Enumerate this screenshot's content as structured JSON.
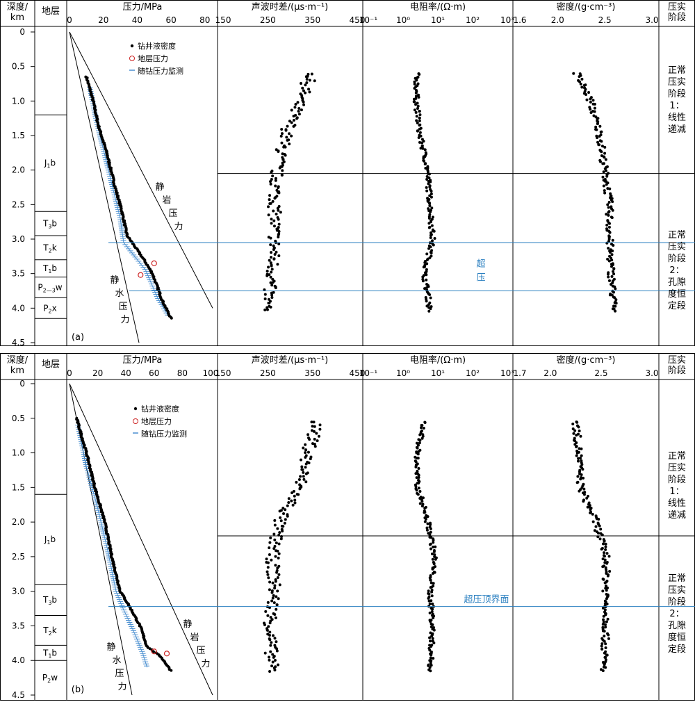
{
  "headers": {
    "depth": [
      "深度/",
      "km"
    ],
    "strata": "地层",
    "pressure": "压力/MPa",
    "sonic": "声波时差/(μs·m⁻¹)",
    "resist": "电阻率/(Ω·m)",
    "density": "密度/(g·cm⁻³)",
    "stage": [
      "压实",
      "阶段"
    ]
  },
  "panels": [
    {
      "label": "(a)",
      "depth_ticks": [
        "0",
        "0.5",
        "1.0",
        "1.5",
        "2.0",
        "2.5",
        "3.0",
        "3.5",
        "4.0",
        "4.5"
      ],
      "pressure_ticks": [
        "0",
        "20",
        "40",
        "60",
        "80"
      ],
      "pressure_max": 85,
      "sonic_ticks": [
        "150",
        "250",
        "350",
        "450"
      ],
      "resist_ticks": [
        "10⁻¹",
        "10⁰",
        "10¹",
        "10²",
        "10³"
      ],
      "density_ticks": [
        "1.6",
        "2.0",
        "2.5",
        "3.0"
      ],
      "density_range": [
        1.6,
        3.0
      ],
      "strata": [
        {
          "top": 0,
          "bottom": 1.2,
          "name": "",
          "sub": ""
        },
        {
          "top": 1.2,
          "bottom": 2.6,
          "name": "J",
          "sub": "1",
          "suffix": "b"
        },
        {
          "top": 2.6,
          "bottom": 2.95,
          "name": "T",
          "sub": "3",
          "suffix": "b"
        },
        {
          "top": 2.95,
          "bottom": 3.3,
          "name": "T",
          "sub": "2",
          "suffix": "k"
        },
        {
          "top": 3.3,
          "bottom": 3.55,
          "name": "T",
          "sub": "1",
          "suffix": "b"
        },
        {
          "top": 3.55,
          "bottom": 3.85,
          "name": "P",
          "sub": "2—3",
          "suffix": "w"
        },
        {
          "top": 3.85,
          "bottom": 4.15,
          "name": "P",
          "sub": "2",
          "suffix": "x"
        },
        {
          "top": 4.15,
          "bottom": 4.5,
          "name": "",
          "sub": ""
        }
      ],
      "legend": [
        "钻井液密度",
        "地层压力",
        "随钻压力监测"
      ],
      "line_labels": {
        "lithostatic": [
          "静",
          "岩",
          "压",
          "力"
        ],
        "hydrostatic": [
          "静",
          "水",
          "压",
          "力"
        ]
      },
      "stage1": [
        "正常",
        "压实",
        "阶段",
        "1：",
        "线性",
        "递减"
      ],
      "stage2": [
        "正常",
        "压实",
        "阶段",
        "2：",
        "孔隙",
        "度恒",
        "定段"
      ],
      "boundary_depth": 2.05,
      "overpressure_top": 3.05,
      "overpressure_bottom": 3.75,
      "overpressure_label": [
        "超",
        "压"
      ],
      "formation_pressure": [
        {
          "pressure": 50,
          "depth": 3.35
        },
        {
          "pressure": 42,
          "depth": 3.52
        }
      ]
    },
    {
      "label": "(b)",
      "depth_ticks": [
        "0",
        "0.5",
        "1.0",
        "1.5",
        "2.0",
        "2.5",
        "3.0",
        "3.5",
        "4.0",
        "4.5"
      ],
      "pressure_ticks": [
        "0",
        "20",
        "40",
        "60",
        "80",
        "100"
      ],
      "pressure_max": 102,
      "sonic_ticks": [
        "150",
        "250",
        "350",
        "450"
      ],
      "resist_ticks": [
        "10⁻¹",
        "10⁰",
        "10¹",
        "10²",
        "10³"
      ],
      "density_ticks": [
        "1.7",
        "2.0",
        "2.5",
        "3.0"
      ],
      "density_range": [
        1.7,
        3.0
      ],
      "strata": [
        {
          "top": 0,
          "bottom": 1.6,
          "name": "",
          "sub": ""
        },
        {
          "top": 1.6,
          "bottom": 2.9,
          "name": "J",
          "sub": "1",
          "suffix": "b"
        },
        {
          "top": 2.9,
          "bottom": 3.35,
          "name": "T",
          "sub": "3",
          "suffix": "b"
        },
        {
          "top": 3.35,
          "bottom": 3.78,
          "name": "T",
          "sub": "2",
          "suffix": "k"
        },
        {
          "top": 3.78,
          "bottom": 4.0,
          "name": "T",
          "sub": "1",
          "suffix": "b"
        },
        {
          "top": 4.0,
          "bottom": 4.5,
          "name": "P",
          "sub": "2",
          "suffix": "w"
        }
      ],
      "legend": [
        "钻井液密度",
        "地层压力",
        "随钻压力监测"
      ],
      "line_labels": {
        "lithostatic": [
          "静",
          "岩",
          "压",
          "力"
        ],
        "hydrostatic": [
          "静",
          "水",
          "压",
          "力"
        ]
      },
      "stage1": [
        "正常",
        "压实",
        "阶段",
        "1：",
        "线性",
        "递减"
      ],
      "stage2": [
        "正常",
        "压实",
        "阶段",
        "2：",
        "孔隙",
        "度恒",
        "定段"
      ],
      "boundary_depth": 2.2,
      "overpressure_top": 3.22,
      "overpressure_label_text": "超压顶界面",
      "formation_pressure": [
        {
          "pressure": 60,
          "depth": 3.87
        },
        {
          "pressure": 69,
          "depth": 3.9
        }
      ]
    }
  ],
  "colors": {
    "blue_line": "#2a7fc0",
    "monitor": "#4a8fd0",
    "formation": "#cc2222",
    "dots": "#000000"
  },
  "chart_data": [
    {
      "type": "scatter",
      "panel": "(a)",
      "x_axes": [
        "压力/MPa",
        "声波时差/(μs·m⁻¹)",
        "电阻率/(Ω·m)",
        "密度/(g·cm⁻³)"
      ],
      "y_axis": "深度/km",
      "ylim": [
        0,
        4.5
      ],
      "series": [
        {
          "name": "钻井液密度",
          "note_units": "MPa",
          "points": [
            [
              10,
              0.65
            ],
            [
              14,
              1.0
            ],
            [
              17,
              1.35
            ],
            [
              22,
              1.75
            ],
            [
              27,
              2.25
            ],
            [
              31,
              2.6
            ],
            [
              34,
              2.95
            ],
            [
              37,
              3.05
            ],
            [
              44,
              3.3
            ],
            [
              49,
              3.5
            ],
            [
              55,
              3.9
            ],
            [
              60,
              4.15
            ]
          ]
        },
        {
          "name": "地层压力",
          "points": [
            [
              50,
              3.35
            ],
            [
              42,
              3.52
            ]
          ]
        },
        {
          "name": "随钻压力监测",
          "points": [
            [
              12,
              0.8
            ],
            [
              16,
              1.3
            ],
            [
              21,
              1.8
            ],
            [
              26,
              2.3
            ],
            [
              30,
              2.7
            ],
            [
              32,
              3.05
            ],
            [
              45,
              3.45
            ],
            [
              52,
              3.85
            ],
            [
              58,
              4.1
            ]
          ]
        }
      ],
      "sonic_trend": [
        [
          350,
          0.6
        ],
        [
          320,
          1.0
        ],
        [
          290,
          1.5
        ],
        [
          270,
          2.0
        ],
        [
          265,
          2.5
        ],
        [
          265,
          3.0
        ],
        [
          260,
          3.5
        ],
        [
          245,
          4.05
        ]
      ],
      "resistivity_trend": [
        [
          2.5,
          0.6
        ],
        [
          2.4,
          1.0
        ],
        [
          3,
          1.5
        ],
        [
          5,
          2.0
        ],
        [
          6,
          2.5
        ],
        [
          7,
          3.0
        ],
        [
          4,
          3.5
        ],
        [
          6,
          4.05
        ]
      ],
      "density_trend": [
        [
          2.2,
          0.6
        ],
        [
          2.35,
          1.0
        ],
        [
          2.45,
          1.5
        ],
        [
          2.5,
          2.0
        ],
        [
          2.55,
          2.5
        ],
        [
          2.55,
          3.0
        ],
        [
          2.57,
          3.5
        ],
        [
          2.6,
          4.05
        ]
      ]
    },
    {
      "type": "scatter",
      "panel": "(b)",
      "x_axes": [
        "压力/MPa",
        "声波时差/(μs·m⁻¹)",
        "电阻率/(Ω·m)",
        "密度/(g·cm⁻³)"
      ],
      "y_axis": "深度/km",
      "ylim": [
        0,
        4.5
      ],
      "series": [
        {
          "name": "钻井液密度",
          "points": [
            [
              5,
              0.5
            ],
            [
              12,
              1.0
            ],
            [
              18,
              1.5
            ],
            [
              25,
              2.0
            ],
            [
              30,
              2.5
            ],
            [
              36,
              3.0
            ],
            [
              42,
              3.2
            ],
            [
              50,
              3.5
            ],
            [
              55,
              3.8
            ],
            [
              65,
              3.95
            ],
            [
              72,
              4.15
            ]
          ]
        },
        {
          "name": "地层压力",
          "points": [
            [
              60,
              3.87
            ],
            [
              69,
              3.9
            ]
          ]
        },
        {
          "name": "随钻压力监测",
          "points": [
            [
              6,
              0.6
            ],
            [
              12,
              1.2
            ],
            [
              20,
              1.8
            ],
            [
              27,
              2.4
            ],
            [
              33,
              3.0
            ],
            [
              38,
              3.25
            ],
            [
              46,
              3.6
            ],
            [
              52,
              3.9
            ],
            [
              55,
              4.1
            ]
          ]
        }
      ],
      "sonic_trend": [
        [
          360,
          0.55
        ],
        [
          340,
          1.0
        ],
        [
          320,
          1.5
        ],
        [
          275,
          2.0
        ],
        [
          260,
          2.5
        ],
        [
          265,
          3.0
        ],
        [
          255,
          3.5
        ],
        [
          260,
          4.15
        ]
      ],
      "resistivity_trend": [
        [
          4,
          0.55
        ],
        [
          2.5,
          1.0
        ],
        [
          2.5,
          1.5
        ],
        [
          5,
          2.0
        ],
        [
          8,
          2.5
        ],
        [
          6,
          3.0
        ],
        [
          7,
          3.5
        ],
        [
          6,
          4.15
        ]
      ],
      "density_trend": [
        [
          2.25,
          0.55
        ],
        [
          2.28,
          1.0
        ],
        [
          2.3,
          1.5
        ],
        [
          2.45,
          2.0
        ],
        [
          2.55,
          2.5
        ],
        [
          2.55,
          3.0
        ],
        [
          2.55,
          3.5
        ],
        [
          2.52,
          4.15
        ]
      ]
    }
  ]
}
